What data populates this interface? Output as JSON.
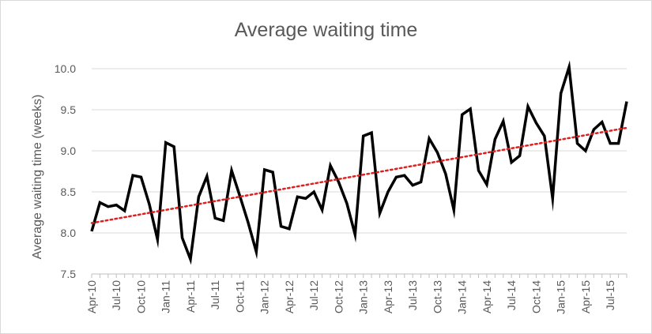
{
  "chart_data": {
    "type": "line",
    "title": "Average waiting time",
    "xlabel": "",
    "ylabel": "Average waiting time (weeks)",
    "ylim": [
      7.5,
      10.0
    ],
    "yticks": [
      "7.5",
      "8.0",
      "8.5",
      "9.0",
      "9.5",
      "10.0"
    ],
    "ytick_values": [
      7.5,
      8.0,
      8.5,
      9.0,
      9.5,
      10.0
    ],
    "x_tick_labels": [
      "Apr-10",
      "Jul-10",
      "Oct-10",
      "Jan-11",
      "Apr-11",
      "Jul-11",
      "Oct-11",
      "Jan-12",
      "Apr-12",
      "Jul-12",
      "Oct-12",
      "Jan-13",
      "Apr-13",
      "Jul-13",
      "Oct-13",
      "Jan-14",
      "Apr-14",
      "Jul-14",
      "Oct-14",
      "Jan-15",
      "Apr-15",
      "Jul-15"
    ],
    "grid": true,
    "legend": "none",
    "series": [
      {
        "values": [
          8.02,
          8.37,
          8.32,
          8.34,
          8.27,
          8.7,
          8.68,
          8.35,
          7.92,
          9.1,
          9.05,
          7.94,
          7.68,
          8.44,
          8.69,
          8.18,
          8.15,
          8.76,
          8.45,
          8.13,
          7.77,
          8.77,
          8.74,
          8.08,
          8.05,
          8.44,
          8.42,
          8.5,
          8.28,
          8.82,
          8.62,
          8.36,
          7.98,
          9.18,
          9.22,
          8.24,
          8.5,
          8.68,
          8.7,
          8.58,
          8.62,
          9.15,
          8.98,
          8.72,
          8.28,
          9.44,
          9.51,
          8.76,
          8.59,
          9.14,
          9.36,
          8.86,
          8.94,
          9.54,
          9.34,
          9.18,
          8.42,
          9.7,
          10.02,
          9.09,
          9.0,
          9.26,
          9.35,
          9.09,
          9.09,
          9.6
        ],
        "color": "#000000"
      },
      {
        "trendline": true,
        "type": "linear",
        "start": 8.12,
        "end": 9.28,
        "color": "#e02020"
      }
    ]
  }
}
